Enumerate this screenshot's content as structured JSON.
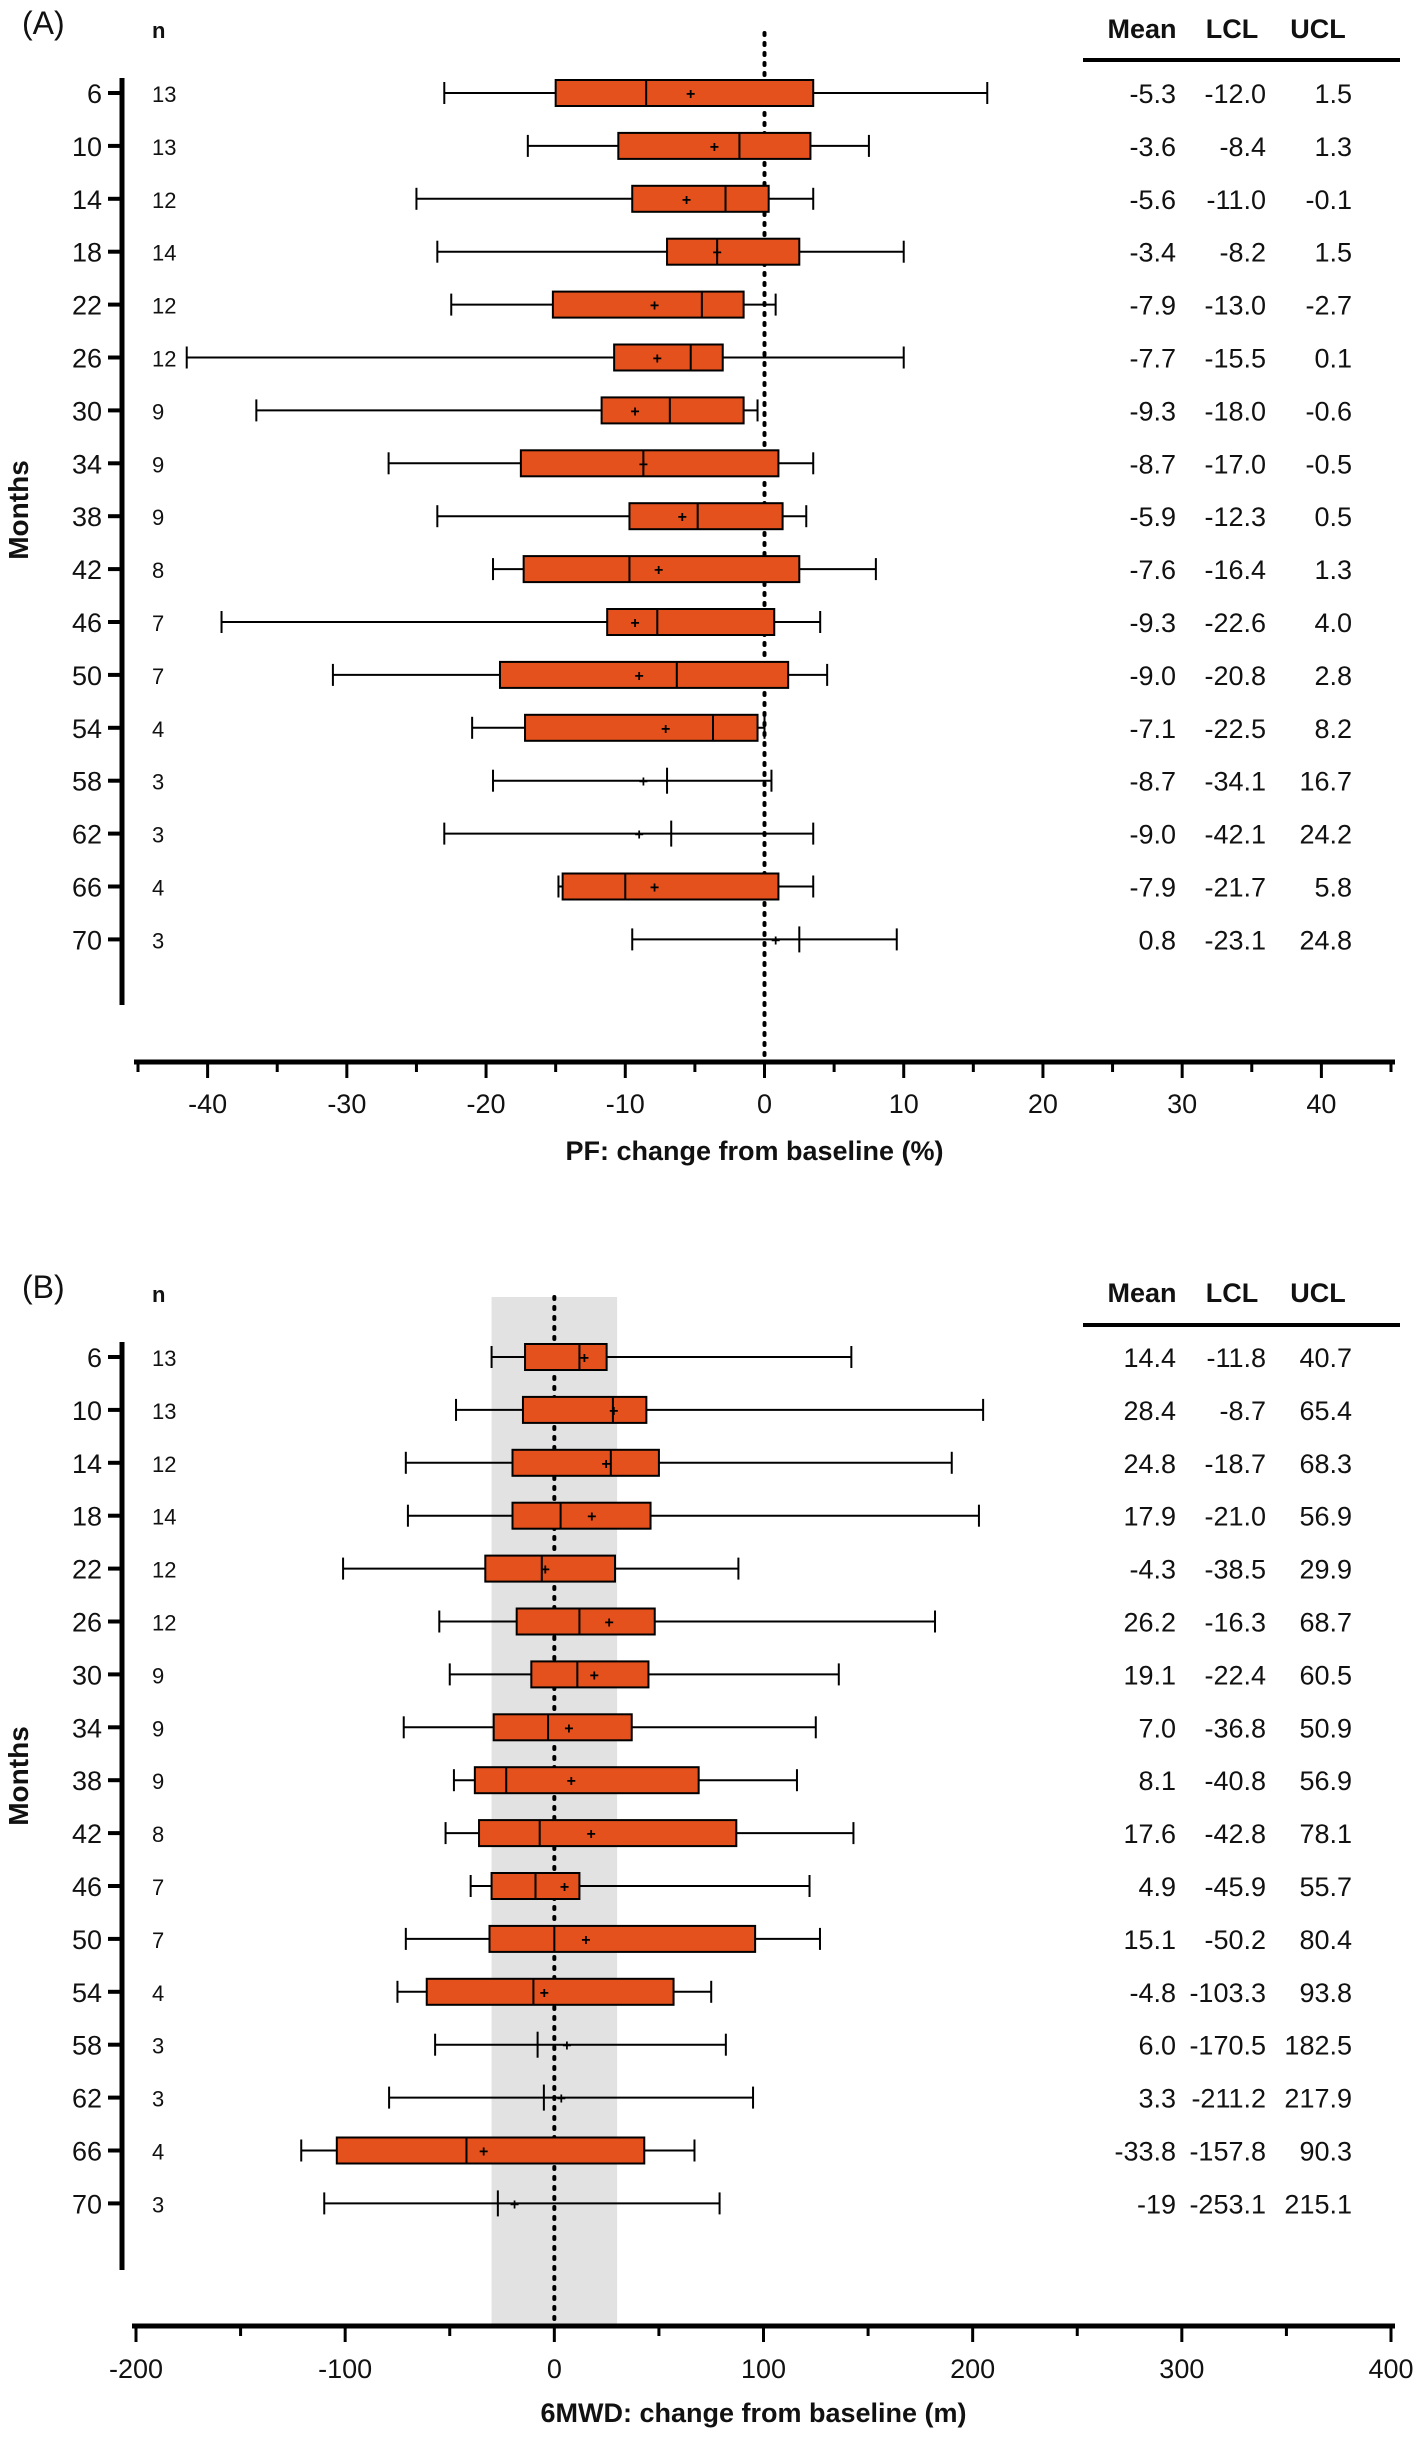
{
  "colors": {
    "box_fill": "#e4511d",
    "box_stroke": "#000000",
    "band_fill": "#e2e2e2",
    "text": "#111111"
  },
  "chart_data": [
    {
      "type": "boxplot",
      "panel_label": "(A)",
      "orientation": "horizontal",
      "ylabel": "Months",
      "xlabel": "PF: change from baseline (%)",
      "xlim": [
        -45,
        45
      ],
      "xticks": [
        -40,
        -30,
        -20,
        -10,
        0,
        10,
        20,
        30,
        40
      ],
      "reference_line": 0,
      "n_header": "n",
      "table_headers": [
        "Mean",
        "LCL",
        "UCL"
      ],
      "rows": [
        {
          "month": "6",
          "n": "13",
          "mean": "-5.3",
          "lcl": "-12.0",
          "ucl": "1.5",
          "box": {
            "min": -23,
            "q1": -15,
            "median": -8.5,
            "q3": 3.5,
            "max": 16,
            "mean": -5.3
          }
        },
        {
          "month": "10",
          "n": "13",
          "mean": "-3.6",
          "lcl": "-8.4",
          "ucl": "1.3",
          "box": {
            "min": -17,
            "q1": -10.5,
            "median": -1.8,
            "q3": 3.3,
            "max": 7.5,
            "mean": -3.6
          }
        },
        {
          "month": "14",
          "n": "12",
          "mean": "-5.6",
          "lcl": "-11.0",
          "ucl": "-0.1",
          "box": {
            "min": -25,
            "q1": -9.5,
            "median": -2.8,
            "q3": 0.3,
            "max": 3.5,
            "mean": -5.6
          }
        },
        {
          "month": "18",
          "n": "14",
          "mean": "-3.4",
          "lcl": "-8.2",
          "ucl": "1.5",
          "box": {
            "min": -23.5,
            "q1": -7,
            "median": -3.4,
            "q3": 2.5,
            "max": 10,
            "mean": -3.4
          }
        },
        {
          "month": "22",
          "n": "12",
          "mean": "-7.9",
          "lcl": "-13.0",
          "ucl": "-2.7",
          "box": {
            "min": -22.5,
            "q1": -15.2,
            "median": -4.5,
            "q3": -1.5,
            "max": 0.8,
            "mean": -7.9
          }
        },
        {
          "month": "26",
          "n": "12",
          "mean": "-7.7",
          "lcl": "-15.5",
          "ucl": "0.1",
          "box": {
            "min": -41.5,
            "q1": -10.8,
            "median": -5.3,
            "q3": -3,
            "max": 10,
            "mean": -7.7
          }
        },
        {
          "month": "30",
          "n": "9",
          "mean": "-9.3",
          "lcl": "-18.0",
          "ucl": "-0.6",
          "box": {
            "min": -36.5,
            "q1": -11.7,
            "median": -6.8,
            "q3": -1.5,
            "max": -0.5,
            "mean": -9.3
          }
        },
        {
          "month": "34",
          "n": "9",
          "mean": "-8.7",
          "lcl": "-17.0",
          "ucl": "-0.5",
          "box": {
            "min": -27,
            "q1": -17.5,
            "median": -8.7,
            "q3": 1,
            "max": 3.5,
            "mean": -8.7
          }
        },
        {
          "month": "38",
          "n": "9",
          "mean": "-5.9",
          "lcl": "-12.3",
          "ucl": "0.5",
          "box": {
            "min": -23.5,
            "q1": -9.7,
            "median": -4.8,
            "q3": 1.3,
            "max": 3,
            "mean": -5.9
          }
        },
        {
          "month": "42",
          "n": "8",
          "mean": "-7.6",
          "lcl": "-16.4",
          "ucl": "1.3",
          "box": {
            "min": -19.5,
            "q1": -17.3,
            "median": -9.7,
            "q3": 2.5,
            "max": 8,
            "mean": -7.6
          }
        },
        {
          "month": "46",
          "n": "7",
          "mean": "-9.3",
          "lcl": "-22.6",
          "ucl": "4.0",
          "box": {
            "min": -39,
            "q1": -11.3,
            "median": -7.7,
            "q3": 0.7,
            "max": 4,
            "mean": -9.3
          }
        },
        {
          "month": "50",
          "n": "7",
          "mean": "-9.0",
          "lcl": "-20.8",
          "ucl": "2.8",
          "box": {
            "min": -31,
            "q1": -19,
            "median": -6.3,
            "q3": 1.7,
            "max": 4.5,
            "mean": -9.0
          }
        },
        {
          "month": "54",
          "n": "4",
          "mean": "-7.1",
          "lcl": "-22.5",
          "ucl": "8.2",
          "box": {
            "min": -21,
            "q1": -17.2,
            "median": -3.7,
            "q3": -0.5,
            "max": 0,
            "mean": -7.1
          }
        },
        {
          "month": "58",
          "n": "3",
          "mean": "-8.7",
          "lcl": "-34.1",
          "ucl": "16.7",
          "box": {
            "min": -19.5,
            "q1": null,
            "median": -7,
            "q3": null,
            "max": 0.5,
            "mean": -8.7
          }
        },
        {
          "month": "62",
          "n": "3",
          "mean": "-9.0",
          "lcl": "-42.1",
          "ucl": "24.2",
          "box": {
            "min": -23,
            "q1": null,
            "median": -6.7,
            "q3": null,
            "max": 3.5,
            "mean": -9.0
          }
        },
        {
          "month": "66",
          "n": "4",
          "mean": "-7.9",
          "lcl": "-21.7",
          "ucl": "5.8",
          "box": {
            "min": -14.8,
            "q1": -14.5,
            "median": -10,
            "q3": 1,
            "max": 3.5,
            "mean": -7.9
          }
        },
        {
          "month": "70",
          "n": "3",
          "mean": "0.8",
          "lcl": "-23.1",
          "ucl": "24.8",
          "box": {
            "min": -9.5,
            "q1": null,
            "median": 2.5,
            "q3": null,
            "max": 9.5,
            "mean": 0.8
          }
        }
      ]
    },
    {
      "type": "boxplot",
      "panel_label": "(B)",
      "orientation": "horizontal",
      "ylabel": "Months",
      "xlabel": "6MWD: change from baseline (m)",
      "xlim": [
        -200,
        400
      ],
      "xticks": [
        -200,
        -100,
        0,
        100,
        200,
        300,
        400
      ],
      "reference_line": 0,
      "shaded_band": [
        -30,
        30
      ],
      "n_header": "n",
      "table_headers": [
        "Mean",
        "LCL",
        "UCL"
      ],
      "rows": [
        {
          "month": "6",
          "n": "13",
          "mean": "14.4",
          "lcl": "-11.8",
          "ucl": "40.7",
          "box": {
            "min": -30,
            "q1": -14,
            "median": 12,
            "q3": 25,
            "max": 142,
            "mean": 14.4
          }
        },
        {
          "month": "10",
          "n": "13",
          "mean": "28.4",
          "lcl": "-8.7",
          "ucl": "65.4",
          "box": {
            "min": -47,
            "q1": -15,
            "median": 28,
            "q3": 44,
            "max": 205,
            "mean": 28.4
          }
        },
        {
          "month": "14",
          "n": "12",
          "mean": "24.8",
          "lcl": "-18.7",
          "ucl": "68.3",
          "box": {
            "min": -71,
            "q1": -20,
            "median": 27,
            "q3": 50,
            "max": 190,
            "mean": 24.8
          }
        },
        {
          "month": "18",
          "n": "14",
          "mean": "17.9",
          "lcl": "-21.0",
          "ucl": "56.9",
          "box": {
            "min": -70,
            "q1": -20,
            "median": 3,
            "q3": 46,
            "max": 203,
            "mean": 17.9
          }
        },
        {
          "month": "22",
          "n": "12",
          "mean": "-4.3",
          "lcl": "-38.5",
          "ucl": "29.9",
          "box": {
            "min": -101,
            "q1": -33,
            "median": -6,
            "q3": 29,
            "max": 88,
            "mean": -4.3
          }
        },
        {
          "month": "26",
          "n": "12",
          "mean": "26.2",
          "lcl": "-16.3",
          "ucl": "68.7",
          "box": {
            "min": -55,
            "q1": -18,
            "median": 12,
            "q3": 48,
            "max": 182,
            "mean": 26.2
          }
        },
        {
          "month": "30",
          "n": "9",
          "mean": "19.1",
          "lcl": "-22.4",
          "ucl": "60.5",
          "box": {
            "min": -50,
            "q1": -11,
            "median": 11,
            "q3": 45,
            "max": 136,
            "mean": 19.1
          }
        },
        {
          "month": "34",
          "n": "9",
          "mean": "7.0",
          "lcl": "-36.8",
          "ucl": "50.9",
          "box": {
            "min": -72,
            "q1": -29,
            "median": -3,
            "q3": 37,
            "max": 125,
            "mean": 7.0
          }
        },
        {
          "month": "38",
          "n": "9",
          "mean": "8.1",
          "lcl": "-40.8",
          "ucl": "56.9",
          "box": {
            "min": -48,
            "q1": -38,
            "median": -23,
            "q3": 69,
            "max": 116,
            "mean": 8.1
          }
        },
        {
          "month": "42",
          "n": "8",
          "mean": "17.6",
          "lcl": "-42.8",
          "ucl": "78.1",
          "box": {
            "min": -52,
            "q1": -36,
            "median": -7,
            "q3": 87,
            "max": 143,
            "mean": 17.6
          }
        },
        {
          "month": "46",
          "n": "7",
          "mean": "4.9",
          "lcl": "-45.9",
          "ucl": "55.7",
          "box": {
            "min": -40,
            "q1": -30,
            "median": -9,
            "q3": 12,
            "max": 122,
            "mean": 4.9
          }
        },
        {
          "month": "50",
          "n": "7",
          "mean": "15.1",
          "lcl": "-50.2",
          "ucl": "80.4",
          "box": {
            "min": -71,
            "q1": -31,
            "median": 0,
            "q3": 96,
            "max": 127,
            "mean": 15.1
          }
        },
        {
          "month": "54",
          "n": "4",
          "mean": "-4.8",
          "lcl": "-103.3",
          "ucl": "93.8",
          "box": {
            "min": -75,
            "q1": -61,
            "median": -10,
            "q3": 57,
            "max": 75,
            "mean": -4.8
          }
        },
        {
          "month": "58",
          "n": "3",
          "mean": "6.0",
          "lcl": "-170.5",
          "ucl": "182.5",
          "box": {
            "min": -57,
            "q1": null,
            "median": -8,
            "q3": null,
            "max": 82,
            "mean": 6.0
          }
        },
        {
          "month": "62",
          "n": "3",
          "mean": "3.3",
          "lcl": "-211.2",
          "ucl": "217.9",
          "box": {
            "min": -79,
            "q1": null,
            "median": -5,
            "q3": null,
            "max": 95,
            "mean": 3.3
          }
        },
        {
          "month": "66",
          "n": "4",
          "mean": "-33.8",
          "lcl": "-157.8",
          "ucl": "90.3",
          "box": {
            "min": -121,
            "q1": -104,
            "median": -42,
            "q3": 43,
            "max": 67,
            "mean": -33.8
          }
        },
        {
          "month": "70",
          "n": "3",
          "mean": "-19",
          "lcl": "-253.1",
          "ucl": "215.1",
          "box": {
            "min": -110,
            "q1": null,
            "median": -27,
            "q3": null,
            "max": 79,
            "mean": -19
          }
        }
      ]
    }
  ]
}
